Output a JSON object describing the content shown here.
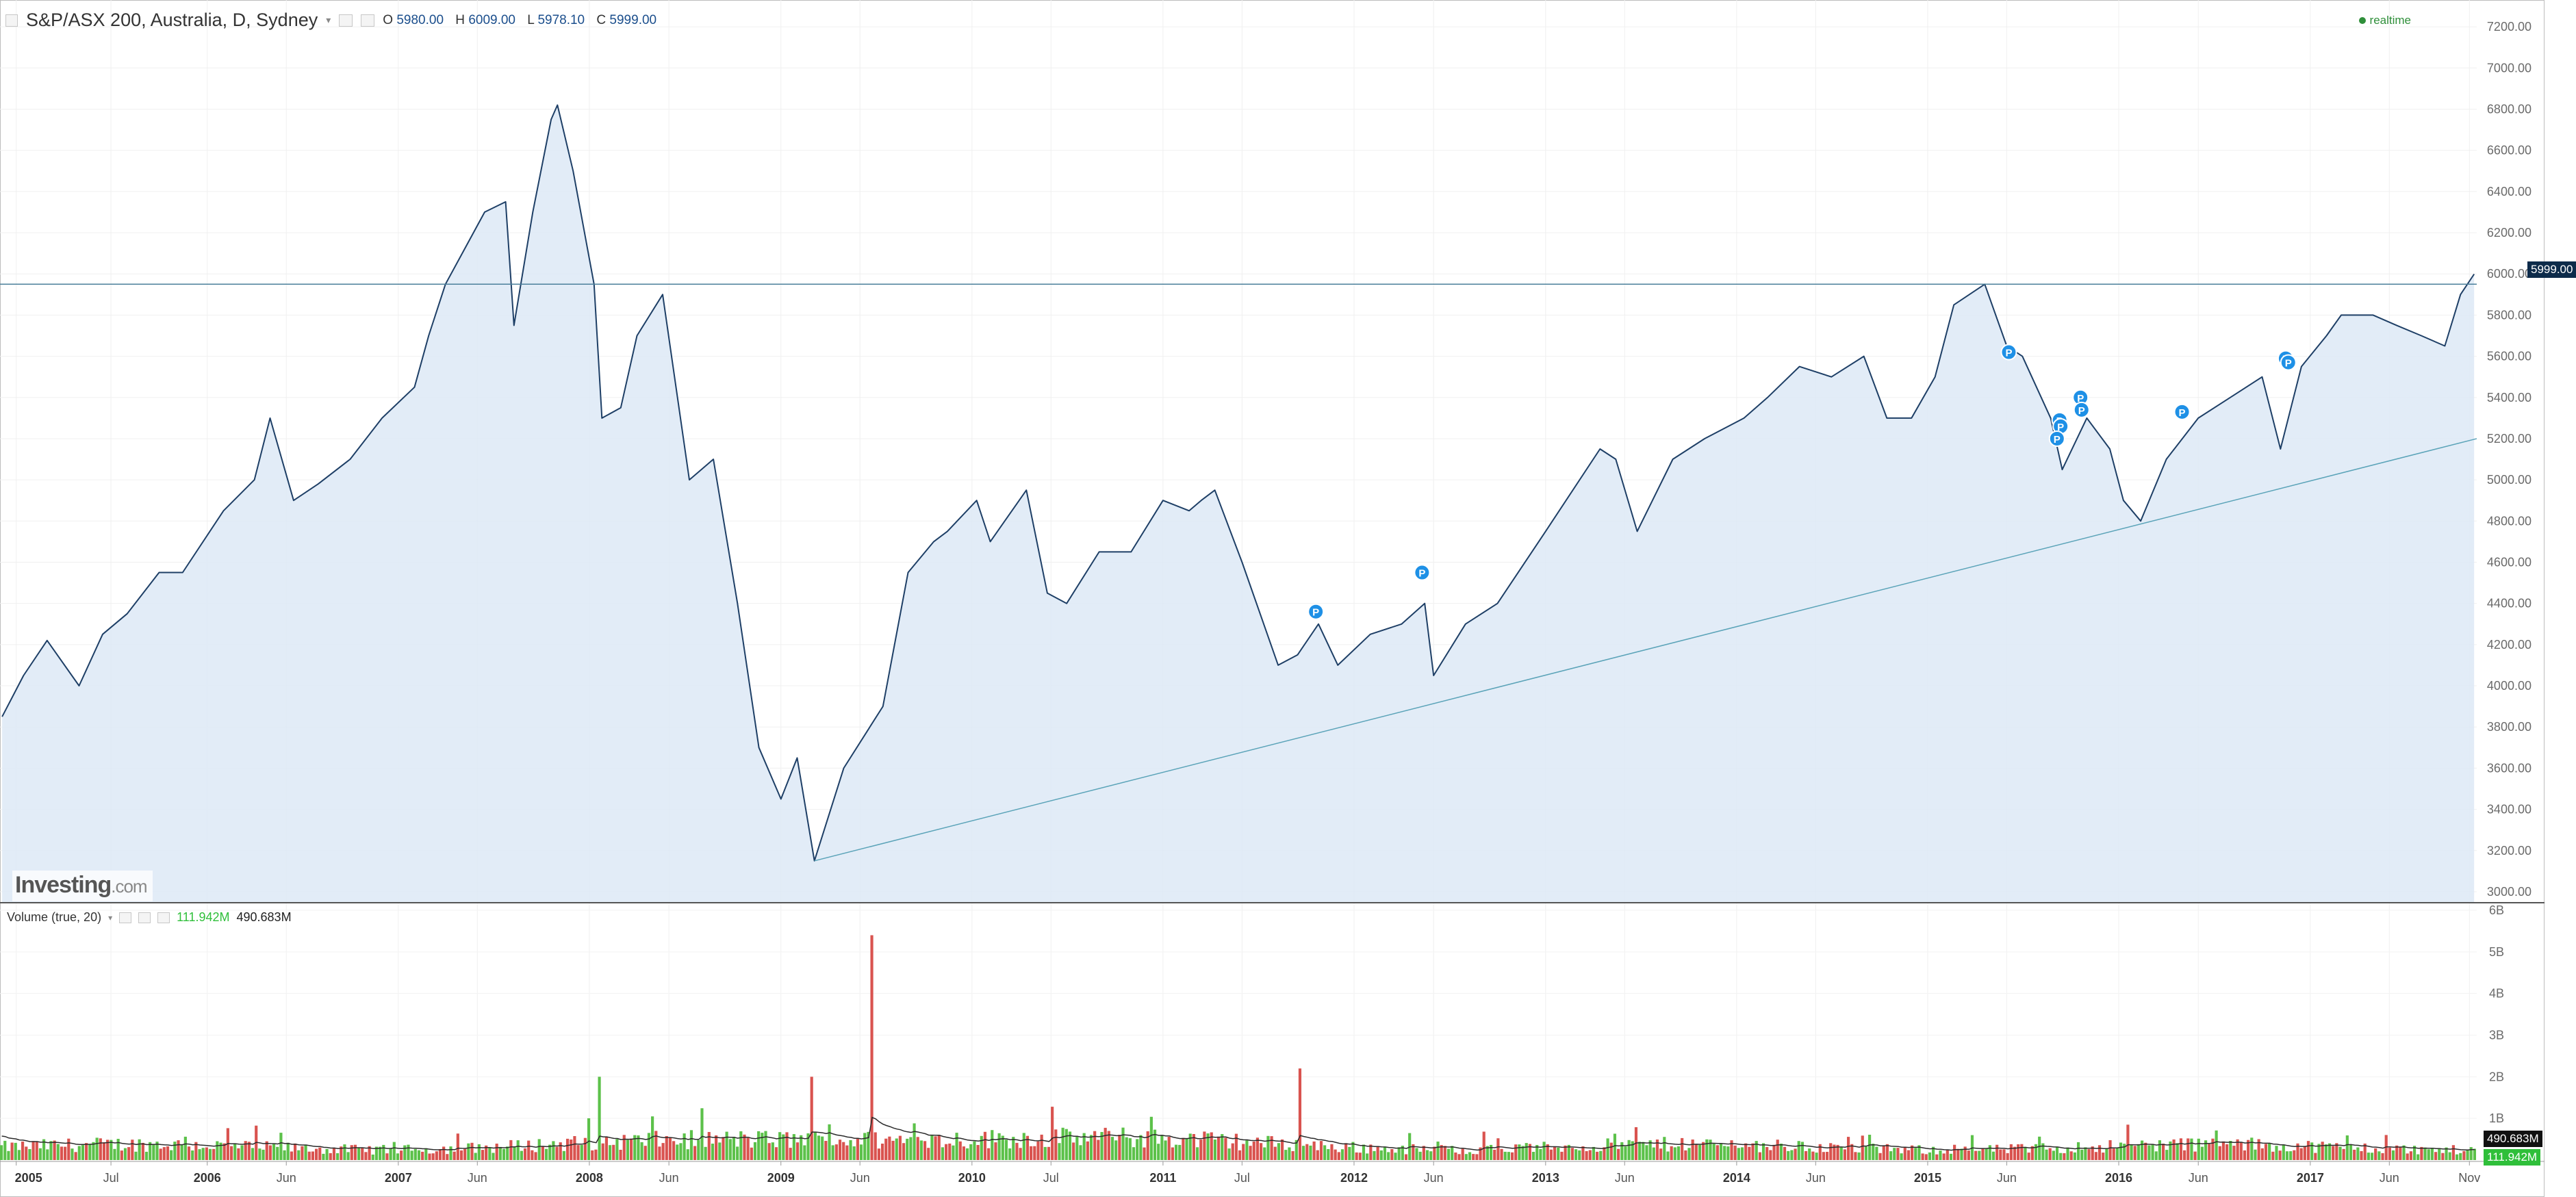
{
  "instrument": {
    "title": "S&P/ASX 200, Australia, D, Sydney",
    "open_label": "O",
    "open": "5980.00",
    "high_label": "H",
    "high": "6009.00",
    "low_label": "L",
    "low": "5978.10",
    "close_label": "C",
    "close": "5999.00"
  },
  "realtime_label": "realtime",
  "watermark": {
    "brand": "Investing",
    "suffix": ".com"
  },
  "volume_panel": {
    "title": "Volume (true, 20)",
    "value_1": "111.942M",
    "value_2": "490.683M",
    "badge_ma": "490.683M",
    "badge_vol": "111.942M"
  },
  "price_badge": "5999.00",
  "colors": {
    "line": "#1e3f66",
    "area": "#dde9f6",
    "trendline": "#5aa3b8",
    "horizontal_line": "#4a7f9a",
    "vol_up": "#5cc14a",
    "vol_down": "#d9534f",
    "vol_ma": "#2b2b2b",
    "marker": "#1e90e6",
    "badge_dark": "#0d2b4a"
  },
  "chart_data": [
    {
      "type": "area",
      "name": "price",
      "y_axis_ticks": [
        "3000.00",
        "3200.00",
        "3400.00",
        "3600.00",
        "3800.00",
        "4000.00",
        "4200.00",
        "4400.00",
        "4600.00",
        "4800.00",
        "5000.00",
        "5200.00",
        "5400.00",
        "5600.00",
        "5800.00",
        "6000.00",
        "6200.00",
        "6400.00",
        "6600.00",
        "6800.00",
        "7000.00",
        "7200.00"
      ],
      "ylim": [
        2950,
        7330
      ],
      "xlim": [
        "2004-12",
        "2017-11-15"
      ],
      "x_ticks": [
        {
          "t": "2005-01",
          "label": "2005",
          "major": true
        },
        {
          "t": "2005-07",
          "label": "Jul",
          "major": false
        },
        {
          "t": "2006-01",
          "label": "2006",
          "major": true
        },
        {
          "t": "2006-06",
          "label": "Jun",
          "major": false
        },
        {
          "t": "2007-01",
          "label": "2007",
          "major": true
        },
        {
          "t": "2007-06",
          "label": "Jun",
          "major": false
        },
        {
          "t": "2008-01",
          "label": "2008",
          "major": true
        },
        {
          "t": "2008-06",
          "label": "Jun",
          "major": false
        },
        {
          "t": "2009-01",
          "label": "2009",
          "major": true
        },
        {
          "t": "2009-06",
          "label": "Jun",
          "major": false
        },
        {
          "t": "2010-01",
          "label": "2010",
          "major": true
        },
        {
          "t": "2010-06",
          "label": "Jul",
          "major": false
        },
        {
          "t": "2011-01",
          "label": "2011",
          "major": true
        },
        {
          "t": "2011-06",
          "label": "Jul",
          "major": false
        },
        {
          "t": "2012-01",
          "label": "2012",
          "major": true
        },
        {
          "t": "2012-06",
          "label": "Jun",
          "major": false
        },
        {
          "t": "2013-01",
          "label": "2013",
          "major": true
        },
        {
          "t": "2013-06",
          "label": "Jun",
          "major": false
        },
        {
          "t": "2014-01",
          "label": "2014",
          "major": true
        },
        {
          "t": "2014-06",
          "label": "Jun",
          "major": false
        },
        {
          "t": "2015-01",
          "label": "2015",
          "major": true
        },
        {
          "t": "2015-06",
          "label": "Jun",
          "major": false
        },
        {
          "t": "2016-01",
          "label": "2016",
          "major": true
        },
        {
          "t": "2016-06",
          "label": "Jun",
          "major": false
        },
        {
          "t": "2017-01",
          "label": "2017",
          "major": true
        },
        {
          "t": "2017-06",
          "label": "Jun",
          "major": false
        },
        {
          "t": "2017-11",
          "label": "Nov",
          "major": false
        }
      ],
      "x": [
        "2004-12-05",
        "2005-01-15",
        "2005-03-01",
        "2005-05-01",
        "2005-06-15",
        "2005-08-01",
        "2005-10-01",
        "2005-11-15",
        "2006-02-01",
        "2006-04-01",
        "2006-05-01",
        "2006-06-15",
        "2006-08-01",
        "2006-10-01",
        "2006-12-01",
        "2007-02-01",
        "2007-02-28",
        "2007-04-01",
        "2007-06-15",
        "2007-07-25",
        "2007-08-10",
        "2007-09-15",
        "2007-10-20",
        "2007-11-01",
        "2007-12-01",
        "2008-01-10",
        "2008-01-25",
        "2008-03-01",
        "2008-04-01",
        "2008-05-20",
        "2008-07-10",
        "2008-08-25",
        "2008-10-10",
        "2008-11-20",
        "2009-01-01",
        "2009-02-01",
        "2009-03-06",
        "2009-05-01",
        "2009-07-15",
        "2009-09-01",
        "2009-10-20",
        "2009-11-15",
        "2010-01-10",
        "2010-02-05",
        "2010-04-15",
        "2010-05-25",
        "2010-07-01",
        "2010-09-01",
        "2010-11-01",
        "2011-01-01",
        "2011-02-20",
        "2011-03-15",
        "2011-04-10",
        "2011-06-01",
        "2011-08-09",
        "2011-09-15",
        "2011-10-25",
        "2011-12-01",
        "2012-02-01",
        "2012-04-01",
        "2012-05-15",
        "2012-06-01",
        "2012-08-01",
        "2012-10-01",
        "2013-01-01",
        "2013-04-15",
        "2013-05-15",
        "2013-06-25",
        "2013-09-01",
        "2013-11-01",
        "2014-01-15",
        "2014-03-01",
        "2014-05-01",
        "2014-07-01",
        "2014-09-01",
        "2014-10-15",
        "2014-12-01",
        "2015-01-15",
        "2015-02-20",
        "2015-04-20",
        "2015-06-01",
        "2015-07-01",
        "2015-08-24",
        "2015-09-15",
        "2015-11-01",
        "2015-12-15",
        "2016-01-10",
        "2016-02-12",
        "2016-04-01",
        "2016-06-01",
        "2016-08-01",
        "2016-10-01",
        "2016-11-05",
        "2016-12-15",
        "2017-02-01",
        "2017-03-01",
        "2017-05-01",
        "2017-06-15",
        "2017-08-01",
        "2017-09-15",
        "2017-10-15",
        "2017-11-10"
      ],
      "values": [
        3850,
        4050,
        4220,
        4000,
        4250,
        4350,
        4550,
        4550,
        4850,
        5000,
        5300,
        4900,
        4980,
        5100,
        5300,
        5450,
        5700,
        5950,
        6300,
        6350,
        5750,
        6300,
        6750,
        6820,
        6500,
        5950,
        5300,
        5350,
        5700,
        5900,
        5000,
        5100,
        4400,
        3700,
        3450,
        3650,
        3150,
        3600,
        3900,
        4550,
        4700,
        4750,
        4900,
        4700,
        4950,
        4450,
        4400,
        4650,
        4650,
        4900,
        4850,
        4900,
        4950,
        4600,
        4100,
        4150,
        4300,
        4100,
        4250,
        4300,
        4400,
        4050,
        4300,
        4400,
        4750,
        5150,
        5100,
        4750,
        5100,
        5200,
        5300,
        5400,
        5550,
        5500,
        5600,
        5300,
        5300,
        5500,
        5850,
        5950,
        5650,
        5600,
        5300,
        5050,
        5300,
        5150,
        4900,
        4800,
        5100,
        5300,
        5400,
        5500,
        5150,
        5550,
        5700,
        5800,
        5800,
        5750,
        5700,
        5650,
        5900,
        5999
      ],
      "trendline": [
        {
          "x": "2009-03-06",
          "y": 3150
        },
        {
          "x": "2017-11-15",
          "y": 5200
        }
      ],
      "horizontal_line": 5950,
      "markers": [
        {
          "x": "2011-10-20",
          "y": 4360
        },
        {
          "x": "2012-05-10",
          "y": 4550
        },
        {
          "x": "2015-06-05",
          "y": 5620
        },
        {
          "x": "2015-09-10",
          "y": 5290
        },
        {
          "x": "2015-09-12",
          "y": 5260
        },
        {
          "x": "2015-09-05",
          "y": 5200
        },
        {
          "x": "2015-10-20",
          "y": 5400
        },
        {
          "x": "2015-10-22",
          "y": 5340
        },
        {
          "x": "2016-05-01",
          "y": 5330
        },
        {
          "x": "2016-11-15",
          "y": 5590
        },
        {
          "x": "2016-11-20",
          "y": 5570
        }
      ]
    },
    {
      "type": "bar",
      "name": "volume",
      "y_axis_ticks": [
        "1B",
        "2B",
        "3B",
        "4B",
        "5B",
        "6B"
      ],
      "ylim": [
        0,
        6
      ],
      "bar_count": 700,
      "baseline_volume_B": 0.6,
      "spikes": [
        {
          "x": "2009-06-20",
          "value": 5.4
        },
        {
          "x": "2011-09-15",
          "value": 2.2
        },
        {
          "x": "2008-01-20",
          "value": 2.0
        },
        {
          "x": "2009-03-01",
          "value": 2.0
        }
      ]
    }
  ]
}
